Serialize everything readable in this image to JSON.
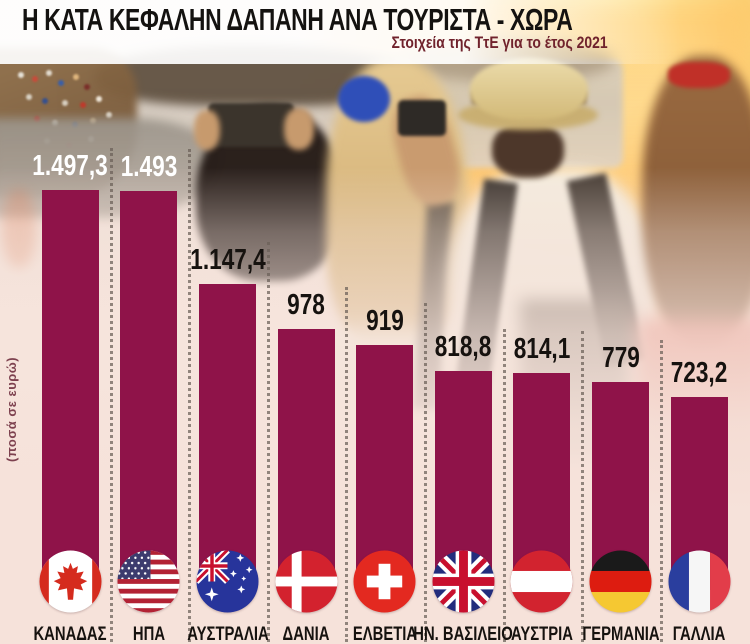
{
  "chart_data": {
    "type": "bar",
    "orientation": "vertical",
    "title": "Η ΚΑΤΑ ΚΕΦΑΛΗΝ ΔΑΠΑΝΗ ΑΝΑ ΤΟΥΡΙΣΤΑ - ΧΩΡΑ",
    "subtitle": "Στοιχεία της ΤτΕ για το έτος 2021",
    "ylabel": "(ποσά σε ευρώ)",
    "xlabel": "",
    "unit": "ευρώ",
    "ylim": [
      0,
      1600
    ],
    "grid": "dotted column separators",
    "legend": "none",
    "categories": [
      "ΚΑΝΑΔΑΣ",
      "ΗΠΑ",
      "ΑΥΣΤΡΑΛΙΑ",
      "ΔΑΝΙΑ",
      "ΕΛΒΕΤΙΑ",
      "ΗΝ. ΒΑΣΙΛΕΙΟ",
      "ΑΥΣΤΡΙΑ",
      "ΓΕΡΜΑΝΙΑ",
      "ΓΑΛΛΙΑ"
    ],
    "values": [
      1497.3,
      1493,
      1147.4,
      978,
      919,
      818.8,
      814.1,
      779,
      723.2
    ],
    "value_labels": [
      "1.497,3",
      "1.493",
      "1.147,4",
      "978",
      "919",
      "818,8",
      "814,1",
      "779",
      "723,2"
    ],
    "value_label_colors": [
      "#ffffff",
      "#ffffff",
      "#16120f",
      "#16120f",
      "#16120f",
      "#16120f",
      "#16120f",
      "#16120f",
      "#16120f"
    ],
    "flags": [
      "canada",
      "usa",
      "australia",
      "denmark",
      "switzerland",
      "uk",
      "austria",
      "germany",
      "france"
    ]
  },
  "colors": {
    "bar": "#8f1349",
    "background": "#f6e2da",
    "title_text": "#141210",
    "subtitle_text": "#70222c",
    "axis_label_text": "#703040",
    "separator": "#6b6058"
  }
}
